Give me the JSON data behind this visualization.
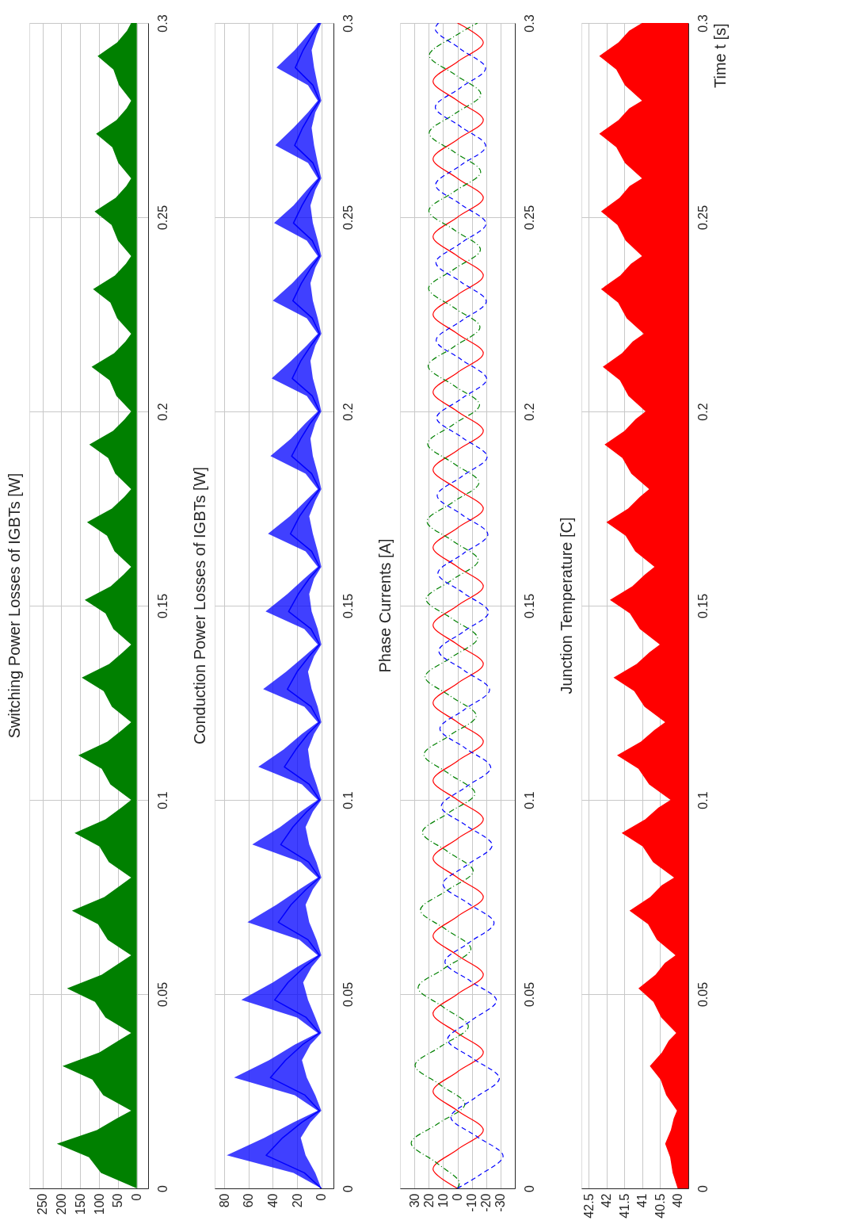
{
  "chart_data": [
    {
      "type": "area",
      "orientation": "horizontal",
      "title": "Switching Power Losses of IGBTs [W]",
      "xlim": [
        285,
        -30
      ],
      "xticks": [
        0,
        50,
        100,
        150,
        200,
        250
      ],
      "ylim": [
        0,
        0.3
      ],
      "yticks": [
        0,
        0.05,
        0.1,
        0.15,
        0.2,
        0.25,
        0.3
      ],
      "grid": true,
      "series": [
        {
          "color": "#008000",
          "x": [
            0,
            0.004,
            0.008,
            0.0115,
            0.015,
            0.018,
            0.02,
            0.024,
            0.028,
            0.0315,
            0.035,
            0.038,
            0.04,
            0.044,
            0.048,
            0.0515,
            0.055,
            0.058,
            0.06,
            0.064,
            0.068,
            0.0715,
            0.075,
            0.078,
            0.08,
            0.084,
            0.088,
            0.0915,
            0.095,
            0.098,
            0.1,
            0.104,
            0.108,
            0.1115,
            0.115,
            0.118,
            0.12,
            0.124,
            0.128,
            0.1315,
            0.135,
            0.138,
            0.14,
            0.144,
            0.148,
            0.1515,
            0.155,
            0.158,
            0.16,
            0.164,
            0.168,
            0.1715,
            0.175,
            0.178,
            0.18,
            0.184,
            0.188,
            0.1915,
            0.195,
            0.198,
            0.2,
            0.204,
            0.208,
            0.2115,
            0.215,
            0.218,
            0.22,
            0.224,
            0.228,
            0.2315,
            0.235,
            0.238,
            0.24,
            0.244,
            0.248,
            0.2515,
            0.255,
            0.258,
            0.26,
            0.264,
            0.268,
            0.2715,
            0.275,
            0.278,
            0.28,
            0.284,
            0.288,
            0.2915,
            0.295,
            0.298,
            0.3
          ],
          "values": [
            0,
            95,
            127,
            212,
            106,
            53,
            15,
            89,
            118,
            197,
            99,
            49,
            15,
            83,
            111,
            185,
            93,
            46,
            15,
            77,
            103,
            172,
            86,
            43,
            15,
            74,
            99,
            165,
            83,
            41,
            15,
            70,
            93,
            155,
            78,
            39,
            15,
            66,
            88,
            146,
            73,
            37,
            15,
            62,
            83,
            138,
            69,
            35,
            15,
            59,
            79,
            132,
            66,
            33,
            15,
            57,
            76,
            126,
            63,
            32,
            15,
            54,
            72,
            120,
            60,
            30,
            15,
            52,
            70,
            116,
            58,
            29,
            15,
            50,
            67,
            112,
            56,
            28,
            15,
            49,
            65,
            108,
            54,
            27,
            15,
            47,
            62,
            104,
            52,
            26,
            15
          ]
        }
      ]
    },
    {
      "type": "area",
      "orientation": "horizontal",
      "title": "Conduction Power Losses of IGBTs [W]",
      "xlim": [
        88,
        -10
      ],
      "xticks": [
        0,
        20,
        40,
        60,
        80
      ],
      "ylim": [
        0,
        0.3
      ],
      "yticks": [
        0,
        0.05,
        0.1,
        0.15,
        0.2,
        0.25,
        0.3
      ],
      "grid": true,
      "series": [
        {
          "type": "line",
          "color": "#0000ff",
          "x": [
            0,
            0.004,
            0.0085,
            0.013,
            0.017,
            0.02,
            0.024,
            0.0285,
            0.033,
            0.037,
            0.04,
            0.044,
            0.0485,
            0.053,
            0.057,
            0.06,
            0.064,
            0.0685,
            0.073,
            0.077,
            0.08,
            0.084,
            0.0885,
            0.093,
            0.097,
            0.1,
            0.104,
            0.1085,
            0.113,
            0.117,
            0.12,
            0.124,
            0.1285,
            0.133,
            0.137,
            0.14,
            0.144,
            0.1485,
            0.153,
            0.157,
            0.16,
            0.164,
            0.1685,
            0.173,
            0.177,
            0.18,
            0.184,
            0.1885,
            0.193,
            0.197,
            0.2,
            0.204,
            0.2085,
            0.213,
            0.217,
            0.22,
            0.224,
            0.2285,
            0.233,
            0.237,
            0.24,
            0.244,
            0.2485,
            0.253,
            0.257,
            0.26,
            0.264,
            0.2685,
            0.273,
            0.277,
            0.28,
            0.284,
            0.2885,
            0.293,
            0.297,
            0.3
          ],
          "values": [
            0,
            14,
            45.5,
            32,
            16,
            1.5,
            13.5,
            42,
            29.5,
            15.5,
            1.5,
            12.5,
            38.5,
            27.5,
            14,
            1.5,
            11,
            35.5,
            25,
            12.5,
            1.5,
            10.5,
            33.5,
            23.5,
            12,
            1.5,
            10,
            30.5,
            21,
            11,
            1.5,
            8.5,
            28,
            20,
            10,
            1.5,
            8.5,
            27,
            19,
            10,
            1.5,
            8,
            25.5,
            18,
            9,
            1.5,
            8,
            24.5,
            17,
            9,
            1.5,
            7.5,
            24,
            17,
            8.5,
            1.5,
            7.5,
            23.5,
            16.5,
            8.5,
            1.5,
            7.5,
            23,
            16,
            8.5,
            1.5,
            7,
            22,
            15.5,
            8,
            1.5,
            7,
            21.5,
            15,
            7.5,
            1.5
          ],
          "upper": [
            0,
            23,
            78,
            47,
            23,
            3,
            22,
            72,
            43,
            22,
            3,
            20,
            66,
            40,
            20,
            3,
            18,
            61,
            37,
            18,
            3,
            17,
            57,
            34,
            17,
            3,
            16,
            52,
            31,
            16,
            3,
            14,
            48,
            29,
            14,
            3,
            14,
            46,
            28,
            14,
            3,
            13,
            44,
            26,
            13,
            3,
            13,
            42,
            25,
            13,
            3,
            12,
            41,
            25,
            12,
            3,
            12,
            40,
            24,
            12,
            3,
            12,
            39,
            23,
            12,
            3,
            11,
            38,
            23,
            11,
            3,
            11,
            37,
            22,
            11,
            3
          ],
          "lower": [
            0,
            5,
            13,
            17,
            9,
            0,
            5,
            12,
            16,
            9,
            0,
            5,
            11,
            15,
            8,
            0,
            4,
            10,
            13,
            7,
            0,
            4,
            10,
            13,
            7,
            0,
            4,
            9,
            11,
            6,
            0,
            3,
            8,
            11,
            6,
            0,
            3,
            8,
            10,
            6,
            0,
            3,
            7,
            10,
            5,
            0,
            3,
            7,
            9,
            5,
            0,
            3,
            7,
            9,
            5,
            0,
            3,
            7,
            9,
            5,
            0,
            3,
            7,
            9,
            5,
            0,
            3,
            6,
            8,
            5,
            0,
            3,
            6,
            8,
            4,
            0
          ]
        }
      ]
    },
    {
      "type": "line",
      "orientation": "horizontal",
      "title": "Phase Currents [A]",
      "xlim": [
        40,
        -40
      ],
      "xticks": [
        -30,
        -20,
        -10,
        0,
        10,
        20,
        30
      ],
      "ylim": [
        0,
        0.3
      ],
      "yticks": [
        0,
        0.05,
        0.1,
        0.15,
        0.2,
        0.25,
        0.3
      ],
      "grid": true,
      "series": [
        {
          "color": "#ff0000",
          "line_style": "solid",
          "x": [
            0,
            0.005,
            0.01,
            0.015,
            0.02,
            0.025,
            0.03,
            0.035,
            0.04,
            0.045,
            0.05,
            0.055,
            0.06,
            0.065,
            0.07,
            0.075,
            0.08,
            0.085,
            0.09,
            0.095,
            0.1,
            0.105,
            0.11,
            0.115,
            0.12,
            0.125,
            0.13,
            0.135,
            0.14,
            0.145,
            0.15,
            0.155,
            0.16,
            0.165,
            0.17,
            0.175,
            0.18,
            0.185,
            0.19,
            0.195,
            0.2,
            0.205,
            0.21,
            0.215,
            0.22,
            0.225,
            0.23,
            0.235,
            0.24,
            0.245,
            0.25,
            0.255,
            0.26,
            0.265,
            0.27,
            0.275,
            0.28,
            0.285,
            0.29,
            0.295,
            0.3
          ],
          "values": [
            0,
            17,
            0,
            -18,
            0,
            17,
            0,
            -18,
            0,
            17,
            0,
            -18,
            0,
            17,
            0,
            -18,
            0,
            17,
            0,
            -18,
            0,
            17,
            0,
            -18,
            0,
            17,
            0,
            -18,
            0,
            17,
            0,
            -18,
            0,
            17,
            0,
            -18,
            0,
            17,
            0,
            -18,
            0,
            17,
            0,
            -18,
            0,
            17,
            0,
            -18,
            0,
            17,
            0,
            -18,
            0,
            17,
            0,
            -18,
            0,
            17,
            0,
            -18,
            0
          ]
        },
        {
          "color": "#008000",
          "line_style": "dashdot",
          "x": [
            0,
            0.00167,
            0.00667,
            0.01167,
            0.01667,
            0.02167,
            0.02667,
            0.03167,
            0.03667,
            0.04167,
            0.04667,
            0.05167,
            0.05667,
            0.06167,
            0.06667,
            0.07167,
            0.07667,
            0.08167,
            0.08667,
            0.09167,
            0.09667,
            0.10167,
            0.10667,
            0.11167,
            0.11667,
            0.12167,
            0.12667,
            0.13167,
            0.13667,
            0.14167,
            0.14667,
            0.15167,
            0.15667,
            0.16167,
            0.16667,
            0.17167,
            0.17667,
            0.18167,
            0.18667,
            0.19167,
            0.19667,
            0.20167,
            0.20667,
            0.21167,
            0.21667,
            0.22167,
            0.22667,
            0.23167,
            0.23667,
            0.24167,
            0.24667,
            0.25167,
            0.25667,
            0.26167,
            0.26667,
            0.27167,
            0.27667,
            0.28167,
            0.28667,
            0.29167,
            0.29667,
            0.3
          ],
          "values": [
            0,
            -1.3,
            14.9,
            32.2,
            13.5,
            -5.2,
            12.1,
            29.5,
            11.0,
            -7.6,
            9.9,
            27.4,
            9.0,
            -9.4,
            8.1,
            25.8,
            7.4,
            -11.0,
            6.7,
            24.4,
            6.1,
            -12.2,
            5.6,
            23.3,
            5.1,
            -13.1,
            4.7,
            22.5,
            4.3,
            -13.9,
            3.9,
            21.8,
            3.6,
            -14.5,
            3.3,
            21.2,
            3.1,
            -15.0,
            2.9,
            20.8,
            2.7,
            -15.4,
            2.5,
            20.4,
            2.3,
            -15.7,
            2.2,
            20.1,
            2.1,
            -16.0,
            2.0,
            19.9,
            1.9,
            -16.2,
            1.8,
            19.7,
            1.7,
            -16.3,
            1.6,
            19.6,
            1.6,
            -14.0
          ]
        },
        {
          "color": "#0000ff",
          "line_style": "dashed",
          "x": [
            0,
            0.00333,
            0.00833,
            0.01333,
            0.01833,
            0.02333,
            0.02833,
            0.03333,
            0.03833,
            0.04333,
            0.04833,
            0.05333,
            0.05833,
            0.06333,
            0.06833,
            0.07333,
            0.07833,
            0.08333,
            0.08833,
            0.09333,
            0.09833,
            0.10333,
            0.10833,
            0.11333,
            0.11833,
            0.12333,
            0.12833,
            0.13333,
            0.13833,
            0.14333,
            0.14833,
            0.15333,
            0.15833,
            0.16333,
            0.16833,
            0.17333,
            0.17833,
            0.18333,
            0.18833,
            0.19333,
            0.19833,
            0.20333,
            0.20833,
            0.21333,
            0.21833,
            0.22333,
            0.22833,
            0.23333,
            0.23833,
            0.24333,
            0.24833,
            0.25333,
            0.25833,
            0.26333,
            0.26833,
            0.27333,
            0.27833,
            0.28333,
            0.28833,
            0.29333,
            0.29833,
            0.3
          ],
          "values": [
            0,
            -15.0,
            -31.8,
            -13.6,
            4.6,
            -12.3,
            -29.2,
            -11.2,
            6.9,
            -10.1,
            -27.2,
            -9.2,
            8.7,
            -8.4,
            -25.5,
            -7.7,
            10.1,
            -7.0,
            -24.2,
            -6.5,
            11.3,
            -5.9,
            -23.2,
            -5.5,
            12.2,
            -5.1,
            -22.4,
            -4.7,
            13.0,
            -4.3,
            -21.7,
            -4.0,
            13.6,
            -3.8,
            -21.2,
            -3.5,
            14.1,
            -3.3,
            -20.7,
            -3.1,
            14.5,
            -3.0,
            -20.4,
            -2.8,
            14.8,
            -2.7,
            -20.1,
            -2.5,
            15.0,
            -2.4,
            -19.9,
            -2.3,
            15.2,
            -2.2,
            -19.7,
            -2.2,
            15.4,
            -2.1,
            -19.6,
            -2.0,
            15.5,
            13.2
          ]
        }
      ]
    },
    {
      "type": "area",
      "orientation": "horizontal",
      "title": "Junction Temperature [C]",
      "ylabel": "Time t [s]",
      "xlim": [
        42.7,
        39.7
      ],
      "xticks": [
        40,
        40.5,
        41,
        41.5,
        42,
        42.5
      ],
      "ylim": [
        0,
        0.3
      ],
      "yticks": [
        0,
        0.05,
        0.1,
        0.15,
        0.2,
        0.25,
        0.3
      ],
      "grid": true,
      "series": [
        {
          "color": "#ff0000",
          "x": [
            0,
            0.004,
            0.008,
            0.0115,
            0.015,
            0.018,
            0.02,
            0.024,
            0.028,
            0.0315,
            0.035,
            0.038,
            0.04,
            0.044,
            0.048,
            0.0515,
            0.055,
            0.058,
            0.06,
            0.064,
            0.068,
            0.0715,
            0.075,
            0.078,
            0.08,
            0.084,
            0.088,
            0.0915,
            0.095,
            0.098,
            0.1,
            0.104,
            0.108,
            0.1115,
            0.115,
            0.118,
            0.12,
            0.124,
            0.128,
            0.1315,
            0.135,
            0.138,
            0.14,
            0.144,
            0.148,
            0.1515,
            0.155,
            0.158,
            0.16,
            0.164,
            0.168,
            0.1715,
            0.175,
            0.178,
            0.18,
            0.184,
            0.188,
            0.1915,
            0.195,
            0.198,
            0.2,
            0.204,
            0.208,
            0.2115,
            0.215,
            0.218,
            0.22,
            0.224,
            0.228,
            0.2315,
            0.235,
            0.238,
            0.24,
            0.244,
            0.248,
            0.2515,
            0.255,
            0.258,
            0.26,
            0.264,
            0.268,
            0.2715,
            0.275,
            0.278,
            0.28,
            0.284,
            0.288,
            0.2915,
            0.295,
            0.298,
            0.3
          ],
          "values": [
            40.0,
            40.14,
            40.21,
            40.35,
            40.19,
            40.11,
            40.02,
            40.32,
            40.48,
            40.78,
            40.44,
            40.25,
            40.04,
            40.46,
            40.68,
            41.1,
            40.62,
            40.36,
            40.06,
            40.58,
            40.83,
            41.35,
            40.77,
            40.45,
            40.1,
            40.69,
            40.98,
            41.57,
            40.91,
            40.54,
            40.2,
            40.8,
            41.1,
            41.7,
            41.03,
            40.65,
            40.35,
            40.93,
            41.22,
            41.8,
            41.15,
            40.79,
            40.5,
            41.06,
            41.34,
            41.9,
            41.27,
            40.92,
            40.65,
            41.19,
            41.46,
            42.0,
            41.39,
            41.06,
            40.8,
            41.3,
            41.55,
            42.05,
            41.49,
            41.18,
            40.9,
            41.38,
            41.62,
            42.1,
            41.56,
            41.26,
            40.95,
            41.43,
            41.67,
            42.15,
            41.61,
            41.31,
            41.0,
            41.46,
            41.69,
            42.15,
            41.63,
            41.35,
            41.0,
            41.48,
            41.72,
            42.2,
            41.66,
            41.36,
            41.0,
            41.48,
            41.72,
            42.2,
            41.66,
            41.36,
            41.0
          ]
        }
      ]
    }
  ]
}
